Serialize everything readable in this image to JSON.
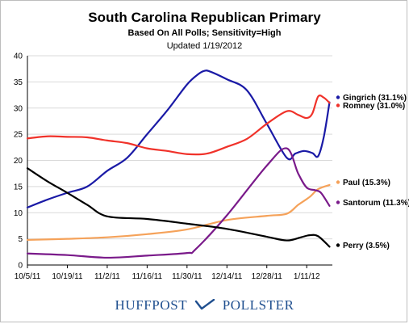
{
  "title": "South Carolina Republican Primary",
  "subtitle": "Based On All Polls; Sensitivity=High",
  "updated": "Updated 1/19/2012",
  "branding": {
    "left": "HUFFPOST",
    "right": "POLLSTER",
    "color": "#1f4f8f"
  },
  "chart_data": {
    "type": "line",
    "title": "South Carolina Republican Primary",
    "subtitle": "Based On All Polls; Sensitivity=High",
    "xlabel": "",
    "ylabel": "",
    "ylim": [
      0,
      40
    ],
    "yticks": [
      0,
      5,
      10,
      15,
      20,
      25,
      30,
      35,
      40
    ],
    "xlim": [
      "2011-10-05",
      "2012-01-20"
    ],
    "xticks": [
      "10/5/11",
      "10/19/11",
      "11/2/11",
      "11/16/11",
      "11/30/11",
      "12/14/11",
      "12/28/11",
      "1/11/12"
    ],
    "grid": true,
    "legend": "right-edge labels",
    "series": [
      {
        "name": "Gingrich",
        "label": "Gingrich (31.1%)",
        "color": "#1a1aa6",
        "points": [
          [
            "2011-10-05",
            11.0
          ],
          [
            "2011-10-12",
            12.5
          ],
          [
            "2011-10-19",
            13.8
          ],
          [
            "2011-10-26",
            15.0
          ],
          [
            "2011-11-02",
            18.0
          ],
          [
            "2011-11-09",
            20.5
          ],
          [
            "2011-11-16",
            25.0
          ],
          [
            "2011-11-23",
            29.5
          ],
          [
            "2011-11-30",
            34.5
          ],
          [
            "2011-12-04",
            36.5
          ],
          [
            "2011-12-06",
            37.1
          ],
          [
            "2011-12-08",
            37.0
          ],
          [
            "2011-12-14",
            35.5
          ],
          [
            "2011-12-21",
            33.4
          ],
          [
            "2011-12-28",
            27.0
          ],
          [
            "2012-01-04",
            20.5
          ],
          [
            "2012-01-07",
            21.3
          ],
          [
            "2012-01-10",
            21.8
          ],
          [
            "2012-01-13",
            21.4
          ],
          [
            "2012-01-15",
            20.8
          ],
          [
            "2012-01-17",
            24.5
          ],
          [
            "2012-01-19",
            31.1
          ]
        ]
      },
      {
        "name": "Romney",
        "label": "Romney (31.0%)",
        "color": "#f0322a",
        "points": [
          [
            "2011-10-05",
            24.2
          ],
          [
            "2011-10-12",
            24.6
          ],
          [
            "2011-10-19",
            24.5
          ],
          [
            "2011-10-26",
            24.4
          ],
          [
            "2011-11-02",
            23.8
          ],
          [
            "2011-11-09",
            23.3
          ],
          [
            "2011-11-16",
            22.3
          ],
          [
            "2011-11-23",
            21.8
          ],
          [
            "2011-11-30",
            21.2
          ],
          [
            "2011-12-07",
            21.3
          ],
          [
            "2011-12-14",
            22.6
          ],
          [
            "2011-12-21",
            24.1
          ],
          [
            "2011-12-28",
            27.0
          ],
          [
            "2012-01-04",
            29.4
          ],
          [
            "2012-01-08",
            28.7
          ],
          [
            "2012-01-11",
            28.1
          ],
          [
            "2012-01-13",
            29.0
          ],
          [
            "2012-01-15",
            32.2
          ],
          [
            "2012-01-17",
            32.0
          ],
          [
            "2012-01-19",
            31.0
          ]
        ]
      },
      {
        "name": "Paul",
        "label": "Paul (15.3%)",
        "color": "#f5a25a",
        "points": [
          [
            "2011-10-05",
            4.8
          ],
          [
            "2011-10-19",
            5.0
          ],
          [
            "2011-11-02",
            5.3
          ],
          [
            "2011-11-16",
            5.9
          ],
          [
            "2011-11-30",
            6.8
          ],
          [
            "2011-12-14",
            8.6
          ],
          [
            "2011-12-28",
            9.4
          ],
          [
            "2012-01-04",
            9.8
          ],
          [
            "2012-01-08",
            11.5
          ],
          [
            "2012-01-12",
            13.0
          ],
          [
            "2012-01-15",
            14.5
          ],
          [
            "2012-01-19",
            15.3
          ]
        ]
      },
      {
        "name": "Santorum",
        "label": "Santorum (11.3%)",
        "color": "#7a1a8a",
        "points": [
          [
            "2011-10-05",
            2.2
          ],
          [
            "2011-10-19",
            1.9
          ],
          [
            "2011-11-02",
            1.4
          ],
          [
            "2011-11-16",
            1.8
          ],
          [
            "2011-11-30",
            2.3
          ],
          [
            "2011-12-03",
            3.0
          ],
          [
            "2011-12-14",
            9.5
          ],
          [
            "2011-12-28",
            19.0
          ],
          [
            "2012-01-04",
            22.3
          ],
          [
            "2012-01-08",
            17.5
          ],
          [
            "2012-01-11",
            14.8
          ],
          [
            "2012-01-14",
            14.3
          ],
          [
            "2012-01-16",
            13.8
          ],
          [
            "2012-01-19",
            11.3
          ]
        ]
      },
      {
        "name": "Perry",
        "label": "Perry (3.5%)",
        "color": "#000000",
        "points": [
          [
            "2011-10-05",
            18.5
          ],
          [
            "2011-10-12",
            16.0
          ],
          [
            "2011-10-19",
            13.8
          ],
          [
            "2011-10-26",
            11.5
          ],
          [
            "2011-11-02",
            9.3
          ],
          [
            "2011-11-16",
            8.8
          ],
          [
            "2011-11-30",
            7.9
          ],
          [
            "2011-12-14",
            6.9
          ],
          [
            "2011-12-28",
            5.4
          ],
          [
            "2012-01-04",
            4.7
          ],
          [
            "2012-01-09",
            5.3
          ],
          [
            "2012-01-12",
            5.7
          ],
          [
            "2012-01-15",
            5.5
          ],
          [
            "2012-01-19",
            3.5
          ]
        ]
      }
    ]
  }
}
